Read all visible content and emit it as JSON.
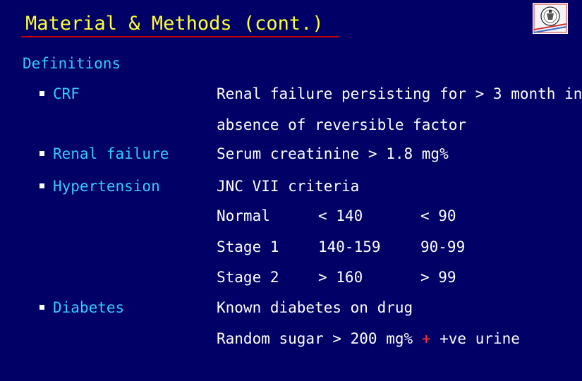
{
  "slide": {
    "title": "Material & Methods (cont.)",
    "section_heading": "Definitions"
  },
  "definitions": [
    {
      "term": "CRF",
      "lines": [
        "Renal failure persisting for > 3 month in",
        "absence of reversible factor"
      ]
    },
    {
      "term": "Renal failure",
      "lines": [
        "Serum creatinine > 1.8 mg%"
      ]
    },
    {
      "term": "Hypertension",
      "lines": [
        "JNC VII criteria"
      ]
    },
    {
      "term": "Diabetes",
      "lines": [
        "Known diabetes on drug"
      ]
    }
  ],
  "jnc_table": [
    [
      "Normal",
      "< 140",
      "< 90"
    ],
    [
      "Stage 1",
      "140-159",
      "90-99"
    ],
    [
      "Stage 2",
      "> 160",
      "> 99"
    ]
  ],
  "diabetes_random": {
    "prefix": "Random sugar > 200 mg%",
    "plus": "+",
    "suffix": "+ve urine"
  },
  "colors": {
    "background": "#000066",
    "title": "#ffff33",
    "terms": "#33ccff",
    "body_text": "#ffffff",
    "rule": "#cc0000"
  },
  "icons": {
    "logo": "university-seal-icon"
  }
}
